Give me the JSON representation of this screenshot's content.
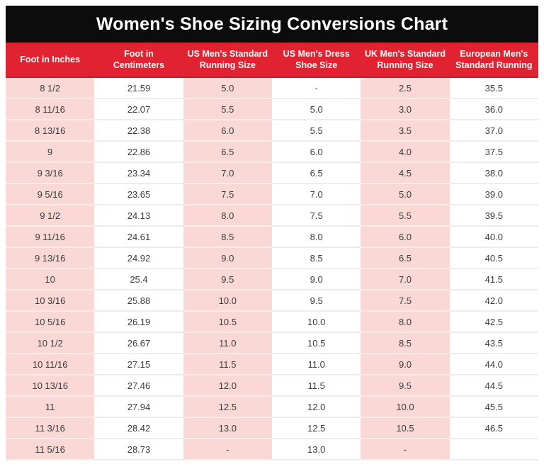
{
  "title": "Women's Shoe Sizing Conversions Chart",
  "colors": {
    "title_bar_bg": "#0d0c0c",
    "title_text": "#ffffff",
    "header_bg": "#e02231",
    "header_text": "#ffffff",
    "pink_column_bg": "#f9d8d6",
    "white_column_bg": "#ffffff",
    "body_text": "#3d3b3c"
  },
  "chart_data": {
    "type": "table",
    "title": "Women's Shoe Sizing Conversions Chart",
    "columns": [
      "Foot in Inches",
      "Foot in\nCentimeters",
      "US Men's Standard\nRunning Size",
      "US Men's Dress\nShoe Size",
      "UK Men's Standard\nRunning Size",
      "European Men's\nStandard Running"
    ],
    "rows": [
      [
        "8 1/2",
        "21.59",
        "5.0",
        "-",
        "2.5",
        "35.5"
      ],
      [
        "8 11/16",
        "22.07",
        "5.5",
        "5.0",
        "3.0",
        "36.0"
      ],
      [
        "8 13/16",
        "22.38",
        "6.0",
        "5.5",
        "3.5",
        "37.0"
      ],
      [
        "9",
        "22.86",
        "6.5",
        "6.0",
        "4.0",
        "37.5"
      ],
      [
        "9 3/16",
        "23.34",
        "7.0",
        "6.5",
        "4.5",
        "38.0"
      ],
      [
        "9 5/16",
        "23.65",
        "7.5",
        "7.0",
        "5.0",
        "39.0"
      ],
      [
        "9 1/2",
        "24.13",
        "8.0",
        "7.5",
        "5.5",
        "39.5"
      ],
      [
        "9 11/16",
        "24.61",
        "8.5",
        "8.0",
        "6.0",
        "40.0"
      ],
      [
        "9 13/16",
        "24.92",
        "9.0",
        "8.5",
        "6.5",
        "40.5"
      ],
      [
        "10",
        "25.4",
        "9.5",
        "9.0",
        "7.0",
        "41.5"
      ],
      [
        "10 3/16",
        "25.88",
        "10.0",
        "9.5",
        "7.5",
        "42.0"
      ],
      [
        "10 5/16",
        "26.19",
        "10.5",
        "10.0",
        "8.0",
        "42.5"
      ],
      [
        "10 1/2",
        "26.67",
        "11.0",
        "10.5",
        "8.5",
        "43.5"
      ],
      [
        "10 11/16",
        "27.15",
        "11.5",
        "11.0",
        "9.0",
        "44.0"
      ],
      [
        "10 13/16",
        "27.46",
        "12.0",
        "11.5",
        "9.5",
        "44.5"
      ],
      [
        "11",
        "27.94",
        "12.5",
        "12.0",
        "10.0",
        "45.5"
      ],
      [
        "11 3/16",
        "28.42",
        "13.0",
        "12.5",
        "10.5",
        "46.5"
      ],
      [
        "11 5/16",
        "28.73",
        "-",
        "13.0",
        "-",
        ""
      ]
    ]
  }
}
